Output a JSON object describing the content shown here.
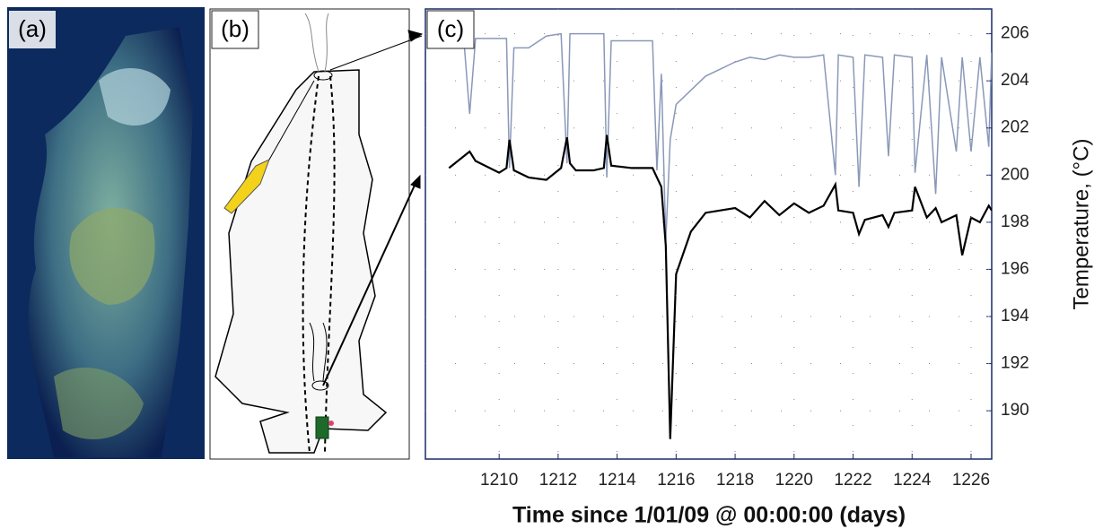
{
  "panels": [
    "(a)",
    "(b)",
    "(c)"
  ],
  "chart_data": {
    "type": "line",
    "xlabel": "Time since 1/01/09 @ 00:00:00 (days)",
    "ylabel": "Temperature, (°C)",
    "x": [
      1208.3,
      1208.8,
      1209.0,
      1209.2,
      1210.0,
      1210.25,
      1210.35,
      1210.5,
      1211.0,
      1211.6,
      1212.1,
      1212.3,
      1212.4,
      1212.6,
      1213.2,
      1213.55,
      1213.65,
      1213.8,
      1214.5,
      1215.2,
      1215.35,
      1215.5,
      1215.65,
      1215.8,
      1216.0,
      1216.5,
      1217.0,
      1217.5,
      1218.0,
      1218.5,
      1219.0,
      1219.5,
      1220.0,
      1220.5,
      1221.0,
      1221.4,
      1221.5,
      1222.0,
      1222.2,
      1222.4,
      1223.0,
      1223.2,
      1223.4,
      1224.0,
      1224.1,
      1224.5,
      1224.8,
      1225.0,
      1225.5,
      1225.7,
      1226.0,
      1226.3,
      1226.6,
      1226.7
    ],
    "series": [
      {
        "color": "#8a98b8",
        "values": [
          205.8,
          205.8,
          202.6,
          205.8,
          205.8,
          205.8,
          200.3,
          205.4,
          205.4,
          205.9,
          206.0,
          200.5,
          206.0,
          206.0,
          206.0,
          206.0,
          199.9,
          205.7,
          205.7,
          205.7,
          200.2,
          204.3,
          197.2,
          201.5,
          203.0,
          203.6,
          204.2,
          204.5,
          204.8,
          205.0,
          204.9,
          205.1,
          205.0,
          205.0,
          205.1,
          200.0,
          205.1,
          205.0,
          199.5,
          205.1,
          205.0,
          200.8,
          205.1,
          205.0,
          200.1,
          205.1,
          199.2,
          205.0,
          201.0,
          205.0,
          201.0,
          205.0,
          201.2,
          205.2
        ]
      },
      {
        "color": "#000000",
        "values": [
          200.3,
          200.8,
          201.0,
          200.6,
          200.1,
          200.3,
          201.5,
          200.2,
          199.9,
          199.8,
          200.3,
          201.6,
          200.5,
          200.2,
          200.2,
          200.3,
          201.7,
          200.4,
          200.3,
          200.3,
          199.9,
          199.5,
          197.0,
          188.8,
          195.8,
          197.6,
          198.4,
          198.5,
          198.6,
          198.2,
          198.9,
          198.3,
          198.8,
          198.4,
          198.7,
          199.6,
          198.5,
          198.4,
          197.5,
          198.1,
          198.3,
          197.8,
          198.4,
          198.5,
          199.5,
          198.2,
          198.6,
          198.0,
          198.3,
          196.6,
          198.2,
          198.0,
          198.7,
          198.5
        ]
      }
    ],
    "xlim": [
      1207.5,
      1226.7
    ],
    "xticks": [
      1210,
      1212,
      1214,
      1216,
      1218,
      1220,
      1222,
      1224,
      1226
    ],
    "ylim": [
      187.95,
      207.05
    ],
    "yticks": [
      190,
      192,
      194,
      196,
      198,
      200,
      202,
      204,
      206
    ],
    "grid": true
  }
}
